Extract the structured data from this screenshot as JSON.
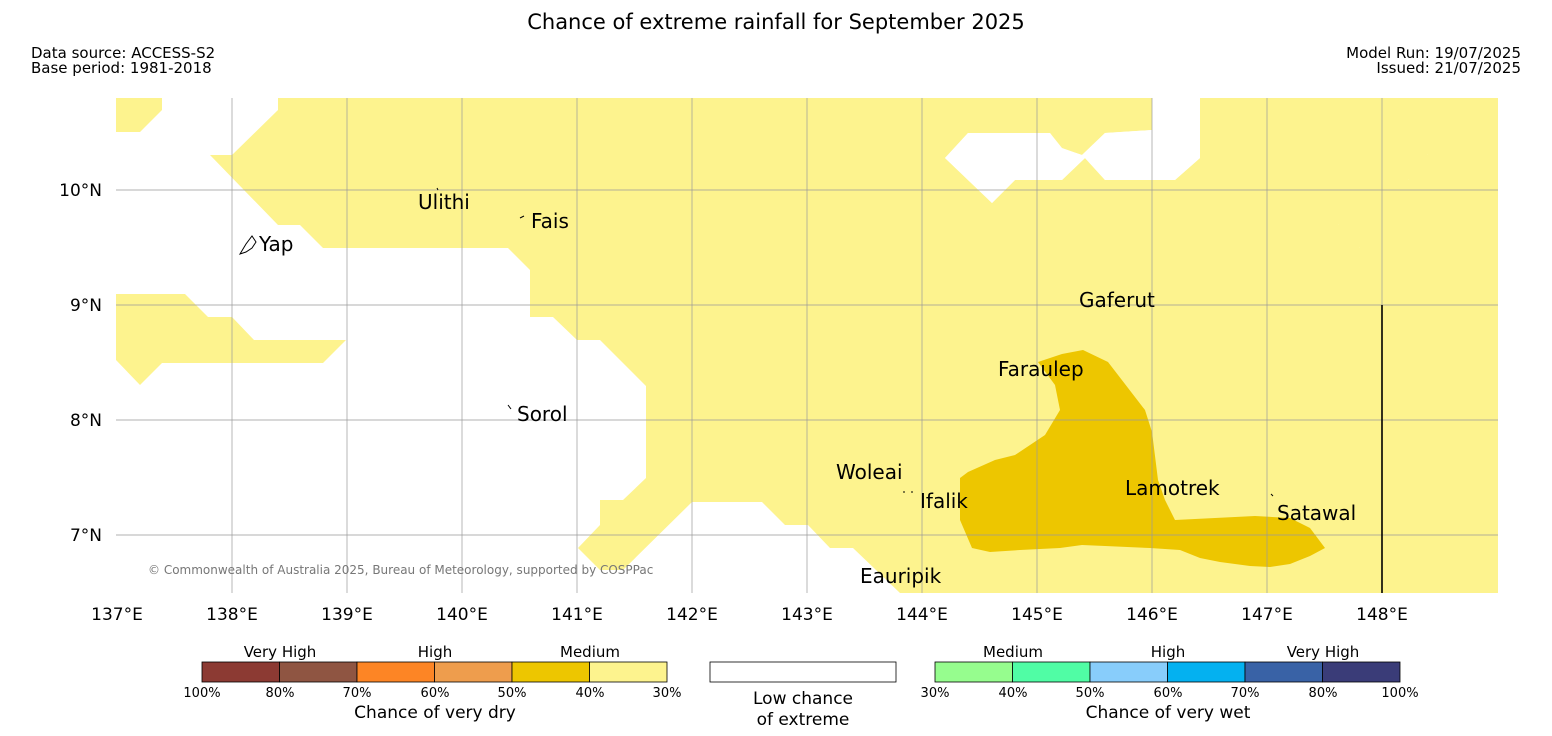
{
  "title": "Chance of extreme rainfall for September 2025",
  "data_source": "Data source: ACCESS-S2",
  "base_period": "Base period: 1981-2018",
  "model_run": "Model Run: 19/07/2025",
  "issued": "Issued: 21/07/2025",
  "copyright": "© Commonwealth of Australia 2025, Bureau of Meteorology, supported by COSPPac",
  "lat_labels": [
    "10°N",
    "9°N",
    "8°N",
    "7°N"
  ],
  "lon_labels": [
    "137°E",
    "138°E",
    "139°E",
    "140°E",
    "141°E",
    "142°E",
    "143°E",
    "144°E",
    "145°E",
    "146°E",
    "147°E",
    "148°E"
  ],
  "places": [
    "Ulithi",
    "Fais",
    "Yap",
    "Gaferut",
    "Faraulep",
    "Sorol",
    "Woleai",
    "Ifalik",
    "Lamotrek",
    "Satawal",
    "Eauripik"
  ],
  "colors": {
    "dry_30_40": "#fdf38e",
    "dry_40_50": "#edc600",
    "grid": "#999999"
  },
  "legend_dry": {
    "headers": [
      "Very High",
      "High",
      "Medium"
    ],
    "ticks": [
      "100%",
      "80%",
      "70%",
      "60%",
      "50%",
      "40%",
      "30%"
    ],
    "colors": [
      "#8c3a33",
      "#8f5542",
      "#fd8525",
      "#ee9d4d",
      "#edc600",
      "#fdf38e"
    ],
    "title": "Chance of very dry"
  },
  "legend_low": {
    "line1": "Low chance",
    "line2": "of extreme"
  },
  "legend_wet": {
    "headers": [
      "Medium",
      "High",
      "Very High"
    ],
    "ticks": [
      "30%",
      "40%",
      "50%",
      "60%",
      "70%",
      "80%",
      "100%"
    ],
    "colors": [
      "#96fd8e",
      "#50fda5",
      "#88cdfb",
      "#04b1f0",
      "#3962a6",
      "#3a3c78"
    ],
    "title": "Chance of very wet"
  }
}
